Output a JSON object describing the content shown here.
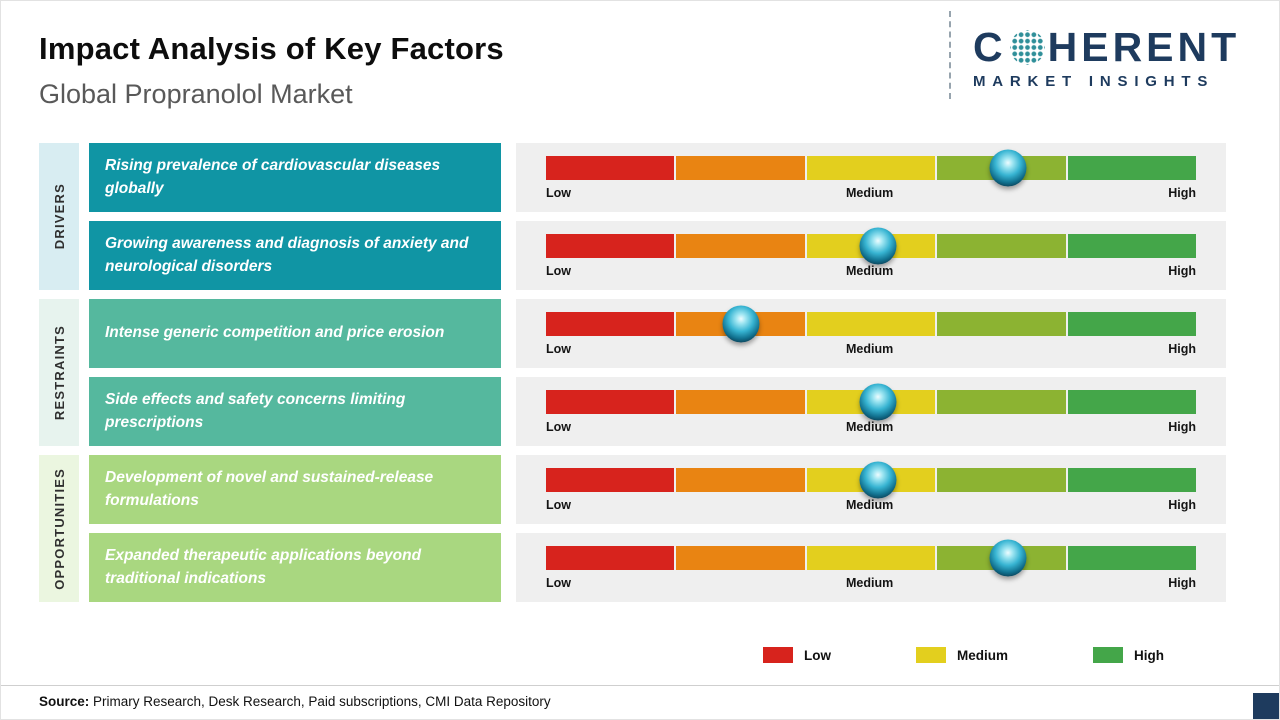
{
  "header": {
    "title": "Impact Analysis of Key Factors",
    "subtitle": "Global Propranolol Market"
  },
  "logo": {
    "brand_prefix": "C",
    "brand_suffix": "HERENT",
    "globe_icon": "dotted-globe-icon",
    "tagline": "MARKET INSIGHTS",
    "brand_color": "#1e3b5e"
  },
  "scale": {
    "labels": {
      "low": "Low",
      "medium": "Medium",
      "high": "High"
    },
    "segment_colors": [
      "#d7231d",
      "#e98412",
      "#e3cf1e",
      "#8cb332",
      "#44a649"
    ],
    "panel_color": "#efefef",
    "marker_color": "#1d9cba"
  },
  "categories": [
    {
      "label": "DRIVERS",
      "color": "#1095a4",
      "strip_color": "#d8edf2",
      "factors": [
        {
          "text": "Rising prevalence of cardiovascular diseases globally",
          "impact_percent": 71
        },
        {
          "text": "Growing awareness and diagnosis of anxiety and neurological disorders",
          "impact_percent": 51
        }
      ]
    },
    {
      "label": "RESTRAINTS",
      "color": "#55b89e",
      "strip_color": "#e7f3ee",
      "factors": [
        {
          "text": "Intense generic competition and price erosion",
          "impact_percent": 30
        },
        {
          "text": "Side effects and safety concerns limiting prescriptions",
          "impact_percent": 51
        }
      ]
    },
    {
      "label": "OPPORTUNITIES",
      "color": "#a9d780",
      "strip_color": "#ebf6e0",
      "factors": [
        {
          "text": "Development of novel and sustained-release formulations",
          "impact_percent": 51
        },
        {
          "text": "Expanded therapeutic applications beyond traditional indications",
          "impact_percent": 71
        }
      ]
    }
  ],
  "legend": {
    "items": [
      {
        "label": "Low",
        "color": "#d7231d"
      },
      {
        "label": "Medium",
        "color": "#e3cf1e"
      },
      {
        "label": "High",
        "color": "#44a649"
      }
    ]
  },
  "source": {
    "label": "Source:",
    "text": " Primary Research, Desk Research, Paid subscriptions, CMI Data Repository"
  }
}
